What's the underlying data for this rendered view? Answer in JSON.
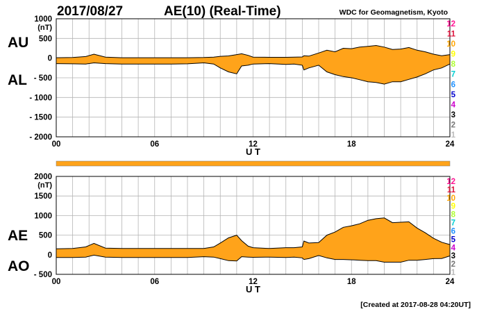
{
  "header": {
    "date": "2017/08/27",
    "title": "AE(10) (Real-Time)",
    "source": "WDC for Geomagnetism, Kyoto"
  },
  "footer": {
    "created": "[Created at 2017-08-28 04:20UT]"
  },
  "colors": {
    "fill": "#ffa31a",
    "line": "#000000",
    "grid": "#b4b4b4",
    "station_count_bar": "#ffa31a"
  },
  "station_scale": [
    {
      "label": "12",
      "color": "#ff1493"
    },
    {
      "label": "11",
      "color": "#dc143c"
    },
    {
      "label": "10",
      "color": "#ffa500"
    },
    {
      "label": "9",
      "color": "#ffff00"
    },
    {
      "label": "8",
      "color": "#adff2f"
    },
    {
      "label": "7",
      "color": "#00ced1"
    },
    {
      "label": "6",
      "color": "#1e90ff"
    },
    {
      "label": "5",
      "color": "#0000cd"
    },
    {
      "label": "4",
      "color": "#cc00cc"
    },
    {
      "label": "3",
      "color": "#000000"
    },
    {
      "label": "2",
      "color": "#777777"
    },
    {
      "label": "1",
      "color": "#bbbbbb"
    }
  ],
  "chart_data": [
    {
      "type": "area",
      "series_labels": [
        "AU",
        "AL"
      ],
      "ylabel_unit": "(nT)",
      "xlabel": "U T",
      "xlim": [
        0,
        24
      ],
      "ylim": [
        -2000,
        1000
      ],
      "x_ticks": [
        "00",
        "06",
        "12",
        "18",
        "24"
      ],
      "y_ticks": [
        "1000",
        "500",
        "0",
        "- 500",
        "- 1000",
        "- 1500",
        "- 2000"
      ],
      "grid": true,
      "x": [
        0,
        1,
        1.8,
        2.3,
        3,
        4,
        5,
        6,
        7,
        8,
        9,
        9.6,
        10,
        10.5,
        11,
        11.3,
        11.7,
        12,
        13,
        14,
        14.5,
        15,
        15.1,
        15.4,
        16,
        16.5,
        17,
        17.5,
        18,
        18.5,
        19,
        19.5,
        20,
        20.5,
        21,
        21.5,
        22,
        22.5,
        23,
        23.5,
        24
      ],
      "upper": [
        10,
        15,
        40,
        100,
        25,
        10,
        10,
        10,
        10,
        10,
        15,
        25,
        45,
        55,
        90,
        110,
        70,
        25,
        20,
        20,
        25,
        30,
        60,
        50,
        130,
        200,
        160,
        250,
        240,
        280,
        300,
        320,
        280,
        220,
        230,
        270,
        200,
        160,
        100,
        60,
        90
      ],
      "lower": [
        -140,
        -145,
        -150,
        -120,
        -140,
        -150,
        -150,
        -150,
        -150,
        -145,
        -120,
        -150,
        -250,
        -350,
        -400,
        -200,
        -180,
        -150,
        -140,
        -160,
        -150,
        -180,
        -300,
        -250,
        -180,
        -350,
        -420,
        -470,
        -500,
        -550,
        -600,
        -620,
        -660,
        -600,
        -600,
        -540,
        -480,
        -400,
        -300,
        -250,
        -150
      ]
    },
    {
      "type": "area",
      "series_labels": [
        "AE",
        "AO"
      ],
      "ylabel_unit": "(nT)",
      "xlabel": "U T",
      "xlim": [
        0,
        24
      ],
      "ylim": [
        -500,
        2000
      ],
      "x_ticks": [
        "00",
        "06",
        "12",
        "18",
        "24"
      ],
      "y_ticks": [
        "2000",
        "1500",
        "1000",
        "500",
        "0",
        "- 500"
      ],
      "grid": true,
      "x": [
        0,
        1,
        1.8,
        2.3,
        3,
        4,
        5,
        6,
        7,
        8,
        9,
        9.6,
        10,
        10.5,
        11,
        11.3,
        11.7,
        12,
        13,
        14,
        14.5,
        15,
        15.1,
        15.4,
        16,
        16.5,
        17,
        17.5,
        18,
        18.5,
        19,
        19.5,
        20,
        20.5,
        21,
        21.5,
        22,
        22.5,
        23,
        23.5,
        24
      ],
      "upper": [
        150,
        160,
        200,
        290,
        170,
        160,
        160,
        160,
        160,
        160,
        160,
        200,
        300,
        430,
        500,
        360,
        220,
        180,
        160,
        180,
        180,
        200,
        350,
        300,
        310,
        500,
        580,
        700,
        740,
        790,
        880,
        920,
        940,
        820,
        830,
        840,
        680,
        560,
        420,
        320,
        260
      ],
      "lower": [
        -70,
        -70,
        -60,
        -10,
        -60,
        -70,
        -70,
        -70,
        -70,
        -70,
        -50,
        -60,
        -100,
        -150,
        -160,
        -50,
        -60,
        -65,
        -60,
        -70,
        -60,
        -80,
        -120,
        -100,
        -20,
        -80,
        -120,
        -120,
        -130,
        -140,
        -150,
        -150,
        -190,
        -190,
        -190,
        -140,
        -140,
        -120,
        -100,
        -95,
        -30
      ]
    }
  ]
}
